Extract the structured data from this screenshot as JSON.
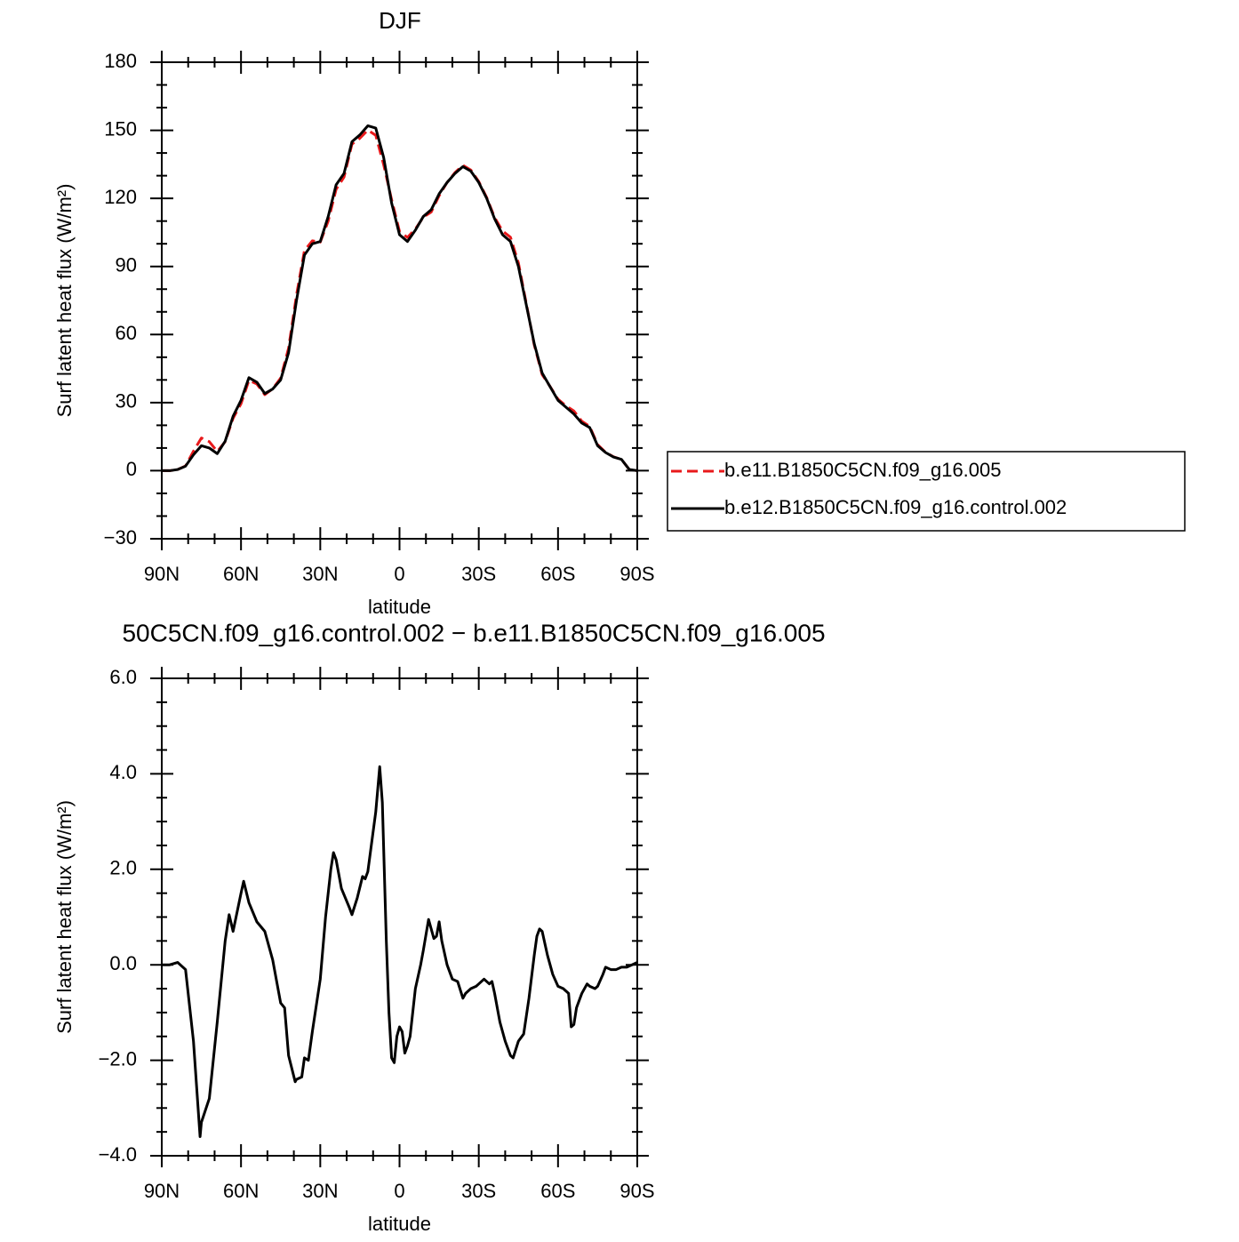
{
  "chart_data": [
    {
      "type": "line",
      "title": "DJF",
      "xlabel": "latitude",
      "ylabel": "Surf latent heat flux (W/m²)",
      "xlim": [
        90,
        -90
      ],
      "xticks": [
        {
          "value": 90,
          "label": "90N"
        },
        {
          "value": 60,
          "label": "60N"
        },
        {
          "value": 30,
          "label": "30N"
        },
        0,
        {
          "value": -30,
          "label": "30S"
        },
        {
          "value": -60,
          "label": "60S"
        },
        {
          "value": -90,
          "label": "90S"
        }
      ],
      "ylim": [
        -30,
        180
      ],
      "yticks": [
        {
          "value": -30,
          "label": "−30"
        },
        0,
        30,
        60,
        90,
        120,
        150,
        180
      ],
      "minor_divisions": 3,
      "legend": "right",
      "x": [
        90,
        87,
        84,
        81,
        78,
        75,
        72,
        69,
        66,
        63,
        60,
        57,
        54,
        51,
        48,
        45,
        42,
        39,
        36,
        33,
        30,
        27,
        24,
        21,
        18,
        15,
        12,
        9,
        6,
        3,
        0,
        -3,
        -6,
        -9,
        -12,
        -15,
        -18,
        -21,
        -24,
        -27,
        -30,
        -33,
        -36,
        -39,
        -42,
        -45,
        -48,
        -51,
        -54,
        -57,
        -60,
        -63,
        -66,
        -69,
        -72,
        -75,
        -78,
        -81,
        -84,
        -87,
        -90
      ],
      "series": [
        {
          "name": "b.e11.B1850C5CN.f09_g16.005",
          "color": "#e8191b",
          "dash": true,
          "values": [
            0,
            0,
            0.5,
            2.1,
            8.6,
            14.4,
            12.8,
            8.5,
            12.8,
            23.1,
            29.5,
            39.8,
            38.2,
            33.5,
            36.1,
            40.8,
            54,
            77.4,
            97,
            101.3,
            100.7,
            110,
            124,
            129.4,
            143.9,
            146.5,
            150.1,
            147.8,
            134.8,
            119.5,
            105.4,
            102.8,
            106.5,
            111.7,
            114,
            121.2,
            127,
            131.4,
            134.6,
            132.5,
            127.4,
            120.4,
            111.6,
            105.6,
            102.9,
            91.6,
            73.6,
            55.4,
            42.3,
            37.1,
            31.5,
            28.6,
            26.3,
            21.8,
            19.5,
            11.5,
            8.1,
            6.1,
            5,
            0.5,
            0
          ]
        },
        {
          "name": "b.e12.B1850C5CN.f09_g16.control.002",
          "color": "#000000",
          "dash": false,
          "values": [
            0,
            0,
            0.5,
            2,
            7,
            11,
            10,
            7.5,
            13,
            24,
            31,
            41,
            39,
            34,
            36,
            40,
            52,
            75,
            95,
            100,
            101,
            112,
            126,
            131,
            145,
            148,
            152,
            151,
            138,
            118,
            104,
            101,
            106,
            112,
            115,
            122,
            127,
            131,
            134,
            132,
            127,
            120,
            111,
            104,
            101,
            90,
            73,
            56,
            43,
            37,
            31,
            28,
            25,
            21,
            19,
            11,
            8,
            6,
            5,
            0.5,
            0
          ]
        }
      ]
    },
    {
      "type": "line",
      "title": "50C5CN.f09_g16.control.002 − b.e11.B1850C5CN.f09_g16.005",
      "xlabel": "latitude",
      "ylabel": "Surf latent heat flux (W/m²)",
      "xlim": [
        90,
        -90
      ],
      "xticks": [
        {
          "value": 90,
          "label": "90N"
        },
        {
          "value": 60,
          "label": "60N"
        },
        {
          "value": 30,
          "label": "30N"
        },
        0,
        {
          "value": -30,
          "label": "30S"
        },
        {
          "value": -60,
          "label": "60S"
        },
        {
          "value": -90,
          "label": "90S"
        }
      ],
      "ylim": [
        -4,
        6
      ],
      "yticks": [
        {
          "value": -4,
          "label": "−4.0"
        },
        {
          "value": -2,
          "label": "−2.0"
        },
        {
          "value": 0,
          "label": "0.0"
        },
        {
          "value": 2,
          "label": "2.0"
        },
        {
          "value": 4,
          "label": "4.0"
        },
        {
          "value": 6,
          "label": "6.0"
        }
      ],
      "minor_divisions": 4,
      "color": "#000000",
      "x": [
        90,
        87,
        84,
        81,
        78,
        75.5,
        75,
        72,
        69,
        66,
        64.5,
        63,
        60,
        59,
        57,
        54,
        51,
        48,
        45,
        43.5,
        42,
        39.5,
        39,
        37,
        36,
        34.5,
        33,
        30,
        28,
        26,
        25,
        24,
        22,
        19,
        18,
        16,
        14,
        13,
        12,
        9,
        7.5,
        6.5,
        5,
        4,
        3,
        2,
        1,
        0,
        -1,
        -2,
        -3,
        -4,
        -6,
        -8,
        -9,
        -11,
        -12,
        -13,
        -14,
        -15,
        -16,
        -18,
        -20,
        -22,
        -24,
        -25,
        -27,
        -29,
        -30,
        -32,
        -34,
        -35,
        -36,
        -38,
        -40,
        -42,
        -43,
        -45,
        -47,
        -49,
        -51,
        -52,
        -53,
        -54,
        -56,
        -58,
        -60,
        -62,
        -64,
        -65,
        -66,
        -67,
        -69,
        -71,
        -72,
        -74,
        -75,
        -77,
        -78,
        -80,
        -82,
        -84,
        -86,
        -88,
        -90
      ],
      "values": [
        0,
        0,
        0.05,
        -0.1,
        -1.6,
        -3.6,
        -3.3,
        -2.8,
        -1.2,
        0.5,
        1.05,
        0.7,
        1.5,
        1.75,
        1.3,
        0.9,
        0.7,
        0.1,
        -0.8,
        -0.9,
        -1.9,
        -2.45,
        -2.4,
        -2.35,
        -1.95,
        -2,
        -1.4,
        -0.3,
        1,
        2,
        2.35,
        2.2,
        1.6,
        1.2,
        1.05,
        1.4,
        1.85,
        1.8,
        1.95,
        3.2,
        4.15,
        3.4,
        0.5,
        -1,
        -1.95,
        -2.05,
        -1.5,
        -1.3,
        -1.4,
        -1.85,
        -1.7,
        -1.5,
        -0.5,
        0,
        0.3,
        0.95,
        0.75,
        0.55,
        0.6,
        0.9,
        0.5,
        0,
        -0.3,
        -0.35,
        -0.7,
        -0.6,
        -0.5,
        -0.45,
        -0.4,
        -0.3,
        -0.4,
        -0.35,
        -0.6,
        -1.2,
        -1.6,
        -1.9,
        -1.95,
        -1.6,
        -1.45,
        -0.7,
        0.2,
        0.6,
        0.75,
        0.7,
        0.2,
        -0.2,
        -0.45,
        -0.5,
        -0.6,
        -1.3,
        -1.25,
        -0.9,
        -0.6,
        -0.4,
        -0.45,
        -0.5,
        -0.45,
        -0.2,
        -0.05,
        -0.1,
        -0.1,
        -0.05,
        -0.05,
        0,
        0.05
      ]
    }
  ]
}
